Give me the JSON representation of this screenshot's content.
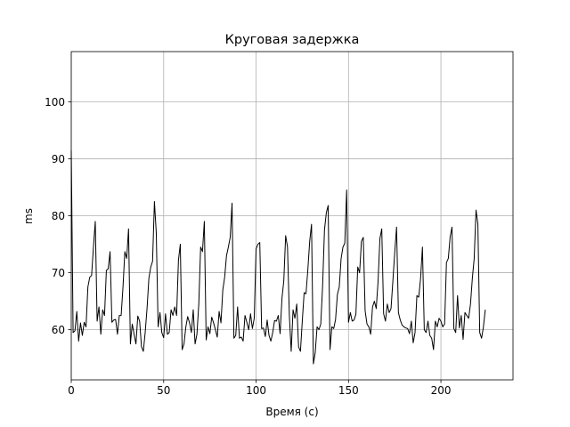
{
  "chart_data": {
    "type": "line",
    "title": "Круговая задержка",
    "xlabel": "Время (с)",
    "ylabel": "ms",
    "xlim": [
      0,
      239
    ],
    "ylim": [
      51.2,
      108.8
    ],
    "xticks": [
      0,
      50,
      100,
      150,
      200
    ],
    "yticks": [
      60,
      70,
      80,
      90,
      100
    ],
    "grid": true,
    "line_color": "#000000",
    "grid_color": "#b0b0b0",
    "series": [
      {
        "points": [
          [
            0,
            91.5
          ],
          [
            1,
            59.5
          ],
          [
            2,
            59.8
          ],
          [
            3,
            63.2
          ],
          [
            4,
            58
          ],
          [
            5,
            61.2
          ],
          [
            6,
            59
          ],
          [
            7,
            61.3
          ],
          [
            8,
            60.5
          ],
          [
            9,
            67.5
          ],
          [
            10,
            69.2
          ],
          [
            11,
            69.5
          ],
          [
            12,
            74.5
          ],
          [
            13,
            79
          ],
          [
            14,
            61.5
          ],
          [
            15,
            64
          ],
          [
            16,
            59.2
          ],
          [
            17,
            63.5
          ],
          [
            18,
            62.5
          ],
          [
            19,
            70.4
          ],
          [
            20,
            70.7
          ],
          [
            21,
            73.7
          ],
          [
            22,
            61.3
          ],
          [
            23,
            61.7
          ],
          [
            24,
            61.8
          ],
          [
            25,
            59.2
          ],
          [
            26,
            62.5
          ],
          [
            27,
            62.5
          ],
          [
            28,
            67.5
          ],
          [
            29,
            73.7
          ],
          [
            30,
            72.5
          ],
          [
            31,
            77.7
          ],
          [
            32,
            57.5
          ],
          [
            33,
            61
          ],
          [
            34,
            59.2
          ],
          [
            35,
            57.5
          ],
          [
            36,
            62.4
          ],
          [
            37,
            61.5
          ],
          [
            38,
            57
          ],
          [
            39,
            56.2
          ],
          [
            40,
            59.5
          ],
          [
            41,
            63.7
          ],
          [
            42,
            69
          ],
          [
            43,
            71
          ],
          [
            44,
            72
          ],
          [
            45,
            82.5
          ],
          [
            46,
            77
          ],
          [
            47,
            60.5
          ],
          [
            48,
            63
          ],
          [
            49,
            59.5
          ],
          [
            50,
            58.6
          ],
          [
            51,
            62.8
          ],
          [
            52,
            59.2
          ],
          [
            53,
            59.5
          ],
          [
            54,
            63.5
          ],
          [
            55,
            62.5
          ],
          [
            56,
            64
          ],
          [
            57,
            62.5
          ],
          [
            58,
            72.2
          ],
          [
            59,
            75
          ],
          [
            60,
            56.5
          ],
          [
            61,
            57.5
          ],
          [
            62,
            60.5
          ],
          [
            63,
            62.3
          ],
          [
            64,
            61.2
          ],
          [
            65,
            59.5
          ],
          [
            66,
            63.5
          ],
          [
            67,
            57.5
          ],
          [
            68,
            59.2
          ],
          [
            69,
            64.5
          ],
          [
            70,
            74.5
          ],
          [
            71,
            73.7
          ],
          [
            72,
            79
          ],
          [
            73,
            58.2
          ],
          [
            74,
            60.5
          ],
          [
            75,
            59.3
          ],
          [
            76,
            62.2
          ],
          [
            77,
            61.2
          ],
          [
            78,
            60
          ],
          [
            79,
            58.7
          ],
          [
            80,
            63.2
          ],
          [
            81,
            61.2
          ],
          [
            82,
            67
          ],
          [
            83,
            69.2
          ],
          [
            84,
            73
          ],
          [
            85,
            74.5
          ],
          [
            86,
            76.2
          ],
          [
            87,
            82.2
          ],
          [
            88,
            58.5
          ],
          [
            89,
            59
          ],
          [
            90,
            64
          ],
          [
            91,
            58.5
          ],
          [
            92,
            58.7
          ],
          [
            93,
            58
          ],
          [
            94,
            62.5
          ],
          [
            95,
            61.3
          ],
          [
            96,
            60
          ],
          [
            97,
            62.8
          ],
          [
            98,
            60.2
          ],
          [
            99,
            62
          ],
          [
            100,
            74.2
          ],
          [
            101,
            75
          ],
          [
            102,
            75.3
          ],
          [
            103,
            60.2
          ],
          [
            104,
            60.3
          ],
          [
            105,
            58.8
          ],
          [
            106,
            61.7
          ],
          [
            107,
            59
          ],
          [
            108,
            58
          ],
          [
            109,
            59.5
          ],
          [
            110,
            61.6
          ],
          [
            111,
            61.5
          ],
          [
            112,
            62.5
          ],
          [
            113,
            59.3
          ],
          [
            114,
            65.5
          ],
          [
            115,
            68.6
          ],
          [
            116,
            76.5
          ],
          [
            117,
            74.5
          ],
          [
            118,
            62.5
          ],
          [
            119,
            56.2
          ],
          [
            120,
            63.5
          ],
          [
            121,
            62
          ],
          [
            122,
            64.5
          ],
          [
            123,
            57
          ],
          [
            124,
            56.2
          ],
          [
            125,
            61.5
          ],
          [
            126,
            66.5
          ],
          [
            127,
            66.3
          ],
          [
            128,
            70.5
          ],
          [
            129,
            75.5
          ],
          [
            130,
            78.5
          ],
          [
            131,
            54
          ],
          [
            132,
            56
          ],
          [
            133,
            60.5
          ],
          [
            134,
            60
          ],
          [
            135,
            61
          ],
          [
            136,
            67.7
          ],
          [
            137,
            77.5
          ],
          [
            138,
            80.5
          ],
          [
            139,
            81.8
          ],
          [
            140,
            56.5
          ],
          [
            141,
            60.5
          ],
          [
            142,
            60.2
          ],
          [
            143,
            61.8
          ],
          [
            144,
            66.2
          ],
          [
            145,
            67.5
          ],
          [
            146,
            72.5
          ],
          [
            147,
            74.5
          ],
          [
            148,
            75.2
          ],
          [
            149,
            84.5
          ],
          [
            150,
            61.3
          ],
          [
            151,
            63
          ],
          [
            152,
            61.5
          ],
          [
            153,
            61.7
          ],
          [
            154,
            62.7
          ],
          [
            155,
            71
          ],
          [
            156,
            70
          ],
          [
            157,
            75.5
          ],
          [
            158,
            76.2
          ],
          [
            159,
            63.3
          ],
          [
            160,
            61
          ],
          [
            161,
            60.5
          ],
          [
            162,
            59.2
          ],
          [
            163,
            64
          ],
          [
            164,
            65
          ],
          [
            165,
            63.7
          ],
          [
            166,
            68.5
          ],
          [
            167,
            76
          ],
          [
            168,
            77.7
          ],
          [
            169,
            62.8
          ],
          [
            170,
            61.5
          ],
          [
            171,
            64.5
          ],
          [
            172,
            63
          ],
          [
            173,
            63.7
          ],
          [
            174,
            68.5
          ],
          [
            175,
            73.5
          ],
          [
            176,
            78
          ],
          [
            177,
            63
          ],
          [
            178,
            61.7
          ],
          [
            179,
            60.8
          ],
          [
            180,
            60.5
          ],
          [
            181,
            60.3
          ],
          [
            182,
            60.2
          ],
          [
            183,
            59.3
          ],
          [
            184,
            61.5
          ],
          [
            185,
            57.7
          ],
          [
            186,
            59.5
          ],
          [
            187,
            66
          ],
          [
            188,
            65.7
          ],
          [
            189,
            69
          ],
          [
            190,
            74.5
          ],
          [
            191,
            60
          ],
          [
            192,
            59.5
          ],
          [
            193,
            61.5
          ],
          [
            194,
            59
          ],
          [
            195,
            58.5
          ],
          [
            196,
            56.5
          ],
          [
            197,
            61.5
          ],
          [
            198,
            60.5
          ],
          [
            199,
            62
          ],
          [
            200,
            61.5
          ],
          [
            201,
            60.5
          ],
          [
            202,
            61
          ],
          [
            203,
            71.8
          ],
          [
            204,
            72.5
          ],
          [
            205,
            76.3
          ],
          [
            206,
            78
          ],
          [
            207,
            60.2
          ],
          [
            208,
            59.5
          ],
          [
            209,
            66
          ],
          [
            210,
            60.3
          ],
          [
            211,
            62.5
          ],
          [
            212,
            58.3
          ],
          [
            213,
            63
          ],
          [
            214,
            62.5
          ],
          [
            215,
            62
          ],
          [
            216,
            64.5
          ],
          [
            217,
            69
          ],
          [
            218,
            72.5
          ],
          [
            219,
            81
          ],
          [
            220,
            78.5
          ],
          [
            221,
            59.5
          ],
          [
            222,
            58.5
          ],
          [
            223,
            60.5
          ],
          [
            224,
            63.5
          ]
        ]
      }
    ]
  }
}
